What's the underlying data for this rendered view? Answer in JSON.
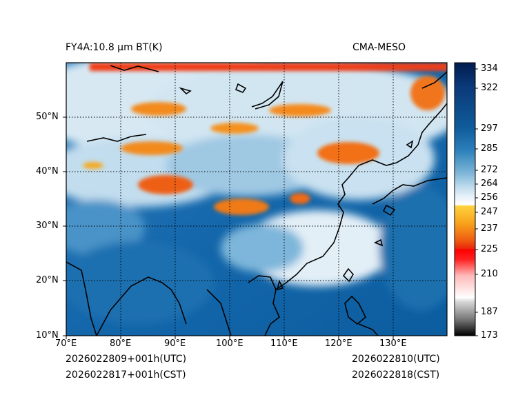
{
  "title_left": "FY4A:10.8 μm BT(K)",
  "title_right": "CMA-MESO",
  "footer": {
    "init_utc": "2026022809+001h(UTC)",
    "init_cst": "2026022817+001h(CST)",
    "valid_utc": "2026022810(UTC)",
    "valid_cst": "2026022818(CST)"
  },
  "lon_ticks": [
    "70°E",
    "80°E",
    "90°E",
    "100°E",
    "110°E",
    "120°E",
    "130°E"
  ],
  "lat_ticks": [
    "10°N",
    "20°N",
    "30°N",
    "40°N",
    "50°N"
  ],
  "colorbar_ticks": [
    "334",
    "322",
    "297",
    "285",
    "272",
    "264",
    "256",
    "247",
    "237",
    "225",
    "210",
    "187",
    "173"
  ],
  "colors": {
    "cold_red": "#ff0000",
    "orange": "#f57a10",
    "yellow": "#ffcc33",
    "white": "#ffffff",
    "light_blue": "#b9d8eb",
    "mid_blue": "#3f8fc4",
    "deep_blue": "#0b5c9e",
    "navy": "#021c4f"
  }
}
